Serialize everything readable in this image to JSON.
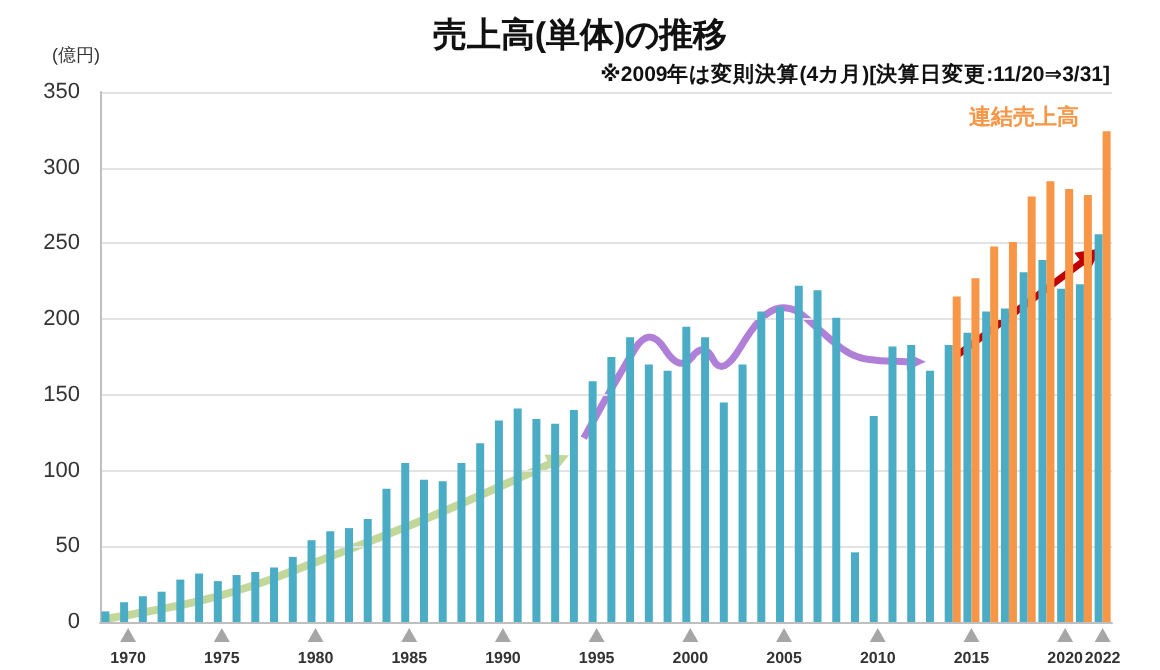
{
  "chart_data": {
    "type": "bar",
    "title": "売上高(単体)の推移",
    "subtitle": "※2009年は変則決算(4カ月)[決算日変更:11/20⇒3/31]",
    "ylabel": "(億円)",
    "categories": [
      null,
      "1970",
      null,
      null,
      null,
      null,
      "1975",
      null,
      null,
      null,
      null,
      "1980",
      null,
      null,
      null,
      null,
      "1985",
      null,
      null,
      null,
      null,
      "1990",
      null,
      null,
      null,
      null,
      "1995",
      null,
      null,
      null,
      null,
      "2000",
      null,
      null,
      null,
      null,
      "2005",
      null,
      null,
      null,
      null,
      "2010",
      null,
      null,
      null,
      null,
      "2015",
      null,
      null,
      null,
      null,
      "2020",
      null,
      "2022"
    ],
    "series": [
      {
        "color": "#4bacc6",
        "values": [
          7,
          13,
          17,
          20,
          28,
          32,
          27,
          31,
          33,
          36,
          43,
          54,
          60,
          62,
          68,
          88,
          105,
          94,
          93,
          105,
          118,
          133,
          141,
          134,
          131,
          140,
          159,
          175,
          188,
          170,
          166,
          195,
          188,
          145,
          170,
          205,
          208,
          222,
          219,
          201,
          46,
          136,
          182,
          183,
          166,
          183,
          191,
          205,
          207,
          231,
          239,
          220,
          223,
          256
        ]
      },
      {
        "name": "連結売上高",
        "color": "#f79646",
        "values": [
          null,
          null,
          null,
          null,
          null,
          null,
          null,
          null,
          null,
          null,
          null,
          null,
          null,
          null,
          null,
          null,
          null,
          null,
          null,
          null,
          null,
          null,
          null,
          null,
          null,
          null,
          null,
          null,
          null,
          null,
          null,
          null,
          null,
          null,
          null,
          null,
          null,
          null,
          null,
          null,
          null,
          null,
          null,
          null,
          null,
          215,
          227,
          248,
          251,
          281,
          291,
          286,
          282,
          324
        ]
      }
    ],
    "ylim": [
      0,
      350
    ],
    "yticks": [
      0,
      50,
      100,
      150,
      200,
      250,
      300,
      350
    ],
    "grid": "y",
    "legend": false
  }
}
